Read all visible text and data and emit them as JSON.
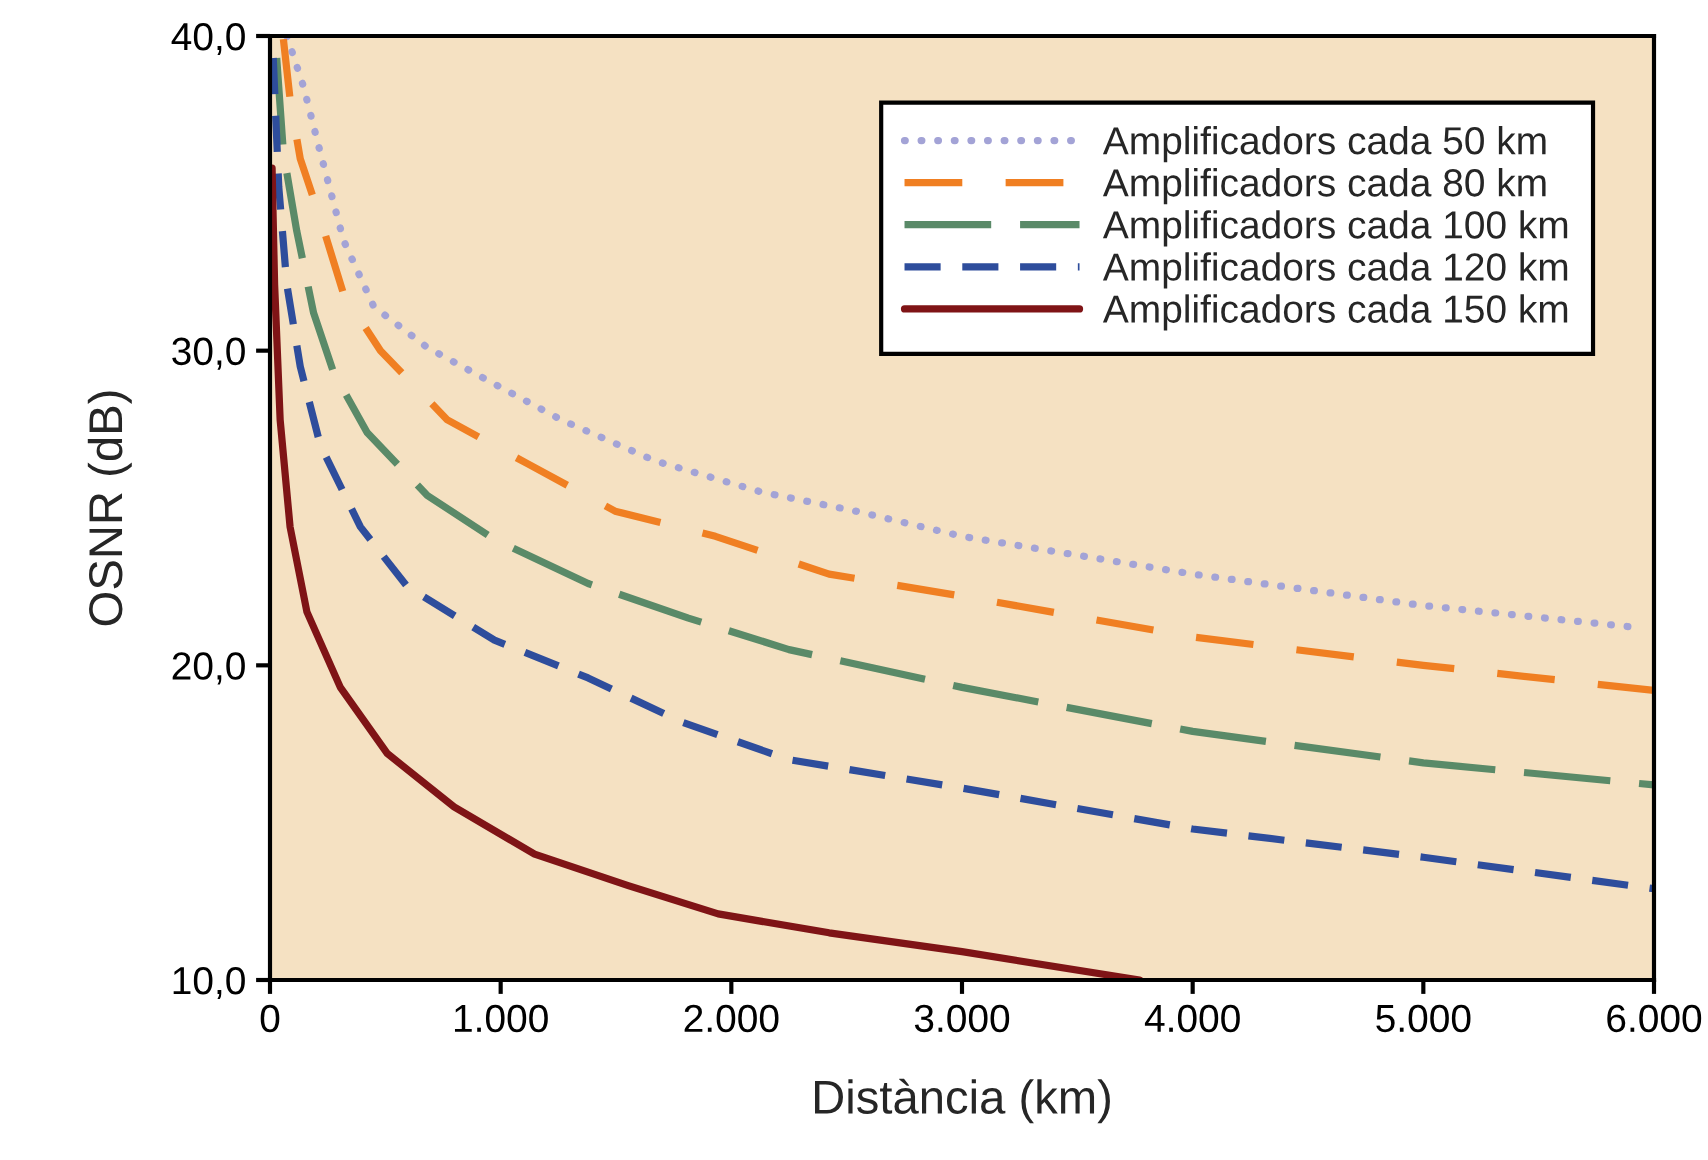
{
  "chart_data": {
    "type": "line",
    "xlabel": "Distància (km)",
    "ylabel": "OSNR (dB)",
    "xlim": [
      0,
      6000
    ],
    "ylim": [
      10,
      40
    ],
    "xticks": [
      {
        "value": 0,
        "label": "0"
      },
      {
        "value": 1000,
        "label": "1.000"
      },
      {
        "value": 2000,
        "label": "2.000"
      },
      {
        "value": 3000,
        "label": "3.000"
      },
      {
        "value": 4000,
        "label": "4.000"
      },
      {
        "value": 5000,
        "label": "5.000"
      },
      {
        "value": 6000,
        "label": "6.000"
      }
    ],
    "yticks": [
      {
        "value": 10,
        "label": "10,0"
      },
      {
        "value": 20,
        "label": "20,0"
      },
      {
        "value": 30,
        "label": "30,0"
      },
      {
        "value": 40,
        "label": "40,0"
      }
    ],
    "grid": false,
    "legend": "top right",
    "marker": "none",
    "series": [
      {
        "name": "Amplificadors cada 50 km",
        "color": "#a3a3d6",
        "line_style": "dotted",
        "x": [
          73,
          145,
          218,
          319,
          450,
          682,
          958,
          1263,
          1669,
          2134,
          2540,
          3000,
          4000,
          5000,
          5930
        ],
        "values": [
          40.0,
          38.4,
          36.3,
          33.5,
          31.4,
          30.1,
          29.0,
          27.8,
          26.5,
          25.5,
          24.9,
          24.1,
          22.9,
          21.9,
          21.2
        ]
      },
      {
        "name": "Amplificadors cada 80 km",
        "color": "#f07f22",
        "line_style": "dashed",
        "x": [
          58,
          87,
          131,
          218,
          319,
          479,
          769,
          1118,
          1496,
          1931,
          2424,
          3000,
          4000,
          5000,
          6000
        ],
        "values": [
          39.9,
          38.0,
          36.1,
          34.2,
          31.8,
          30.0,
          27.8,
          26.4,
          24.9,
          24.1,
          22.9,
          22.2,
          20.9,
          20.0,
          19.2
        ]
      },
      {
        "name": "Amplificadors cada 100 km",
        "color": "#5a8a68",
        "line_style": "dashed",
        "x": [
          29,
          58,
          116,
          189,
          276,
          421,
          682,
          973,
          1379,
          1814,
          2250,
          3000,
          4000,
          5000,
          6000
        ],
        "values": [
          39.3,
          36.3,
          33.8,
          31.2,
          29.3,
          27.4,
          25.4,
          24.0,
          22.6,
          21.5,
          20.5,
          19.3,
          17.9,
          16.9,
          16.2
        ]
      },
      {
        "name": "Amplificadors cada 120 km",
        "color": "#2e4d9c",
        "line_style": "dashed",
        "x": [
          14,
          38,
          73,
          131,
          218,
          392,
          595,
          973,
          1379,
          1785,
          2250,
          3000,
          4000,
          5000,
          6000
        ],
        "values": [
          39.3,
          35.2,
          32.1,
          29.5,
          27.0,
          24.4,
          22.5,
          20.8,
          19.6,
          18.2,
          17.0,
          16.1,
          14.8,
          13.9,
          12.9
        ]
      },
      {
        "name": "Amplificadors cada 150 km",
        "color": "#7f1416",
        "line_style": "solid",
        "x": [
          9,
          20,
          44,
          87,
          160,
          305,
          508,
          798,
          1147,
          1553,
          1943,
          2424,
          3000,
          3770
        ],
        "values": [
          35.8,
          32.1,
          27.8,
          24.4,
          21.7,
          19.3,
          17.2,
          15.5,
          14.0,
          13.0,
          12.1,
          11.5,
          10.9,
          10.0
        ]
      }
    ]
  }
}
